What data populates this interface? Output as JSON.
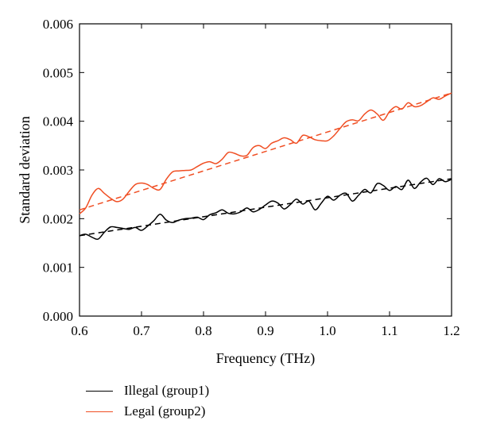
{
  "chart_data": {
    "type": "line",
    "xlabel": "Frequency (THz)",
    "ylabel": "Standard deviation",
    "xlim": [
      0.6,
      1.2
    ],
    "ylim": [
      0.0,
      0.006
    ],
    "xticks": [
      "0.6",
      "0.7",
      "0.8",
      "0.9",
      "1.0",
      "1.1",
      "1.2"
    ],
    "yticks": [
      "0.000",
      "0.001",
      "0.002",
      "0.003",
      "0.004",
      "0.005",
      "0.006"
    ],
    "grid": false,
    "legend_position": "bottom-left",
    "series": [
      {
        "name": "Illegal (group1)",
        "color": "#000000",
        "style": "solid",
        "x": [
          0.6,
          0.61,
          0.62,
          0.63,
          0.64,
          0.65,
          0.66,
          0.67,
          0.68,
          0.69,
          0.7,
          0.71,
          0.72,
          0.73,
          0.74,
          0.75,
          0.76,
          0.77,
          0.78,
          0.79,
          0.8,
          0.81,
          0.82,
          0.83,
          0.84,
          0.85,
          0.86,
          0.87,
          0.88,
          0.89,
          0.9,
          0.91,
          0.92,
          0.93,
          0.94,
          0.95,
          0.96,
          0.97,
          0.98,
          0.99,
          1.0,
          1.01,
          1.02,
          1.03,
          1.04,
          1.05,
          1.06,
          1.07,
          1.08,
          1.09,
          1.1,
          1.11,
          1.12,
          1.13,
          1.14,
          1.15,
          1.16,
          1.17,
          1.18,
          1.19,
          1.2
        ],
        "y": [
          0.00165,
          0.00168,
          0.00162,
          0.00158,
          0.00172,
          0.00183,
          0.00182,
          0.0018,
          0.00178,
          0.00182,
          0.00176,
          0.00185,
          0.00196,
          0.00209,
          0.00197,
          0.00192,
          0.00197,
          0.002,
          0.00201,
          0.00203,
          0.00198,
          0.00208,
          0.00212,
          0.00218,
          0.00211,
          0.0021,
          0.00214,
          0.00222,
          0.00214,
          0.00219,
          0.00228,
          0.00236,
          0.00232,
          0.0022,
          0.00229,
          0.0024,
          0.0023,
          0.00236,
          0.00218,
          0.00232,
          0.00246,
          0.00238,
          0.00248,
          0.00252,
          0.00236,
          0.00248,
          0.0026,
          0.00253,
          0.00272,
          0.00268,
          0.00258,
          0.00266,
          0.0026,
          0.00279,
          0.00262,
          0.00275,
          0.00283,
          0.0027,
          0.00282,
          0.00276,
          0.00281
        ]
      },
      {
        "name": "Legal (group2)",
        "color": "#f04e23",
        "style": "solid",
        "x": [
          0.6,
          0.61,
          0.62,
          0.63,
          0.64,
          0.65,
          0.66,
          0.67,
          0.68,
          0.69,
          0.7,
          0.71,
          0.72,
          0.73,
          0.74,
          0.75,
          0.76,
          0.77,
          0.78,
          0.79,
          0.8,
          0.81,
          0.82,
          0.83,
          0.84,
          0.85,
          0.86,
          0.87,
          0.88,
          0.89,
          0.9,
          0.91,
          0.92,
          0.93,
          0.94,
          0.95,
          0.96,
          0.97,
          0.98,
          0.99,
          1.0,
          1.01,
          1.02,
          1.03,
          1.04,
          1.05,
          1.06,
          1.07,
          1.08,
          1.09,
          1.1,
          1.11,
          1.12,
          1.13,
          1.14,
          1.15,
          1.16,
          1.17,
          1.18,
          1.19,
          1.2
        ],
        "y": [
          0.0021,
          0.00222,
          0.00248,
          0.00262,
          0.00252,
          0.00242,
          0.00235,
          0.0024,
          0.00256,
          0.0027,
          0.00273,
          0.0027,
          0.00262,
          0.0026,
          0.00281,
          0.00296,
          0.00298,
          0.00299,
          0.003,
          0.00307,
          0.00314,
          0.00317,
          0.00313,
          0.00322,
          0.00336,
          0.00334,
          0.00329,
          0.0033,
          0.00346,
          0.0035,
          0.00344,
          0.00355,
          0.0036,
          0.00366,
          0.00362,
          0.00355,
          0.00371,
          0.00368,
          0.00362,
          0.0036,
          0.0036,
          0.0037,
          0.00385,
          0.00399,
          0.00403,
          0.00401,
          0.00415,
          0.00423,
          0.00415,
          0.00402,
          0.0042,
          0.0043,
          0.00425,
          0.00438,
          0.0043,
          0.00432,
          0.0044,
          0.00448,
          0.00445,
          0.00452,
          0.00458
        ]
      },
      {
        "color": "#000000",
        "style": "dashed",
        "x": [
          0.6,
          1.2
        ],
        "y": [
          0.00165,
          0.00282
        ]
      },
      {
        "color": "#f04e23",
        "style": "dashed",
        "x": [
          0.6,
          1.2
        ],
        "y": [
          0.00218,
          0.00458
        ]
      }
    ]
  },
  "legend": {
    "items": [
      {
        "label": "Illegal (group1)",
        "color": "#000000"
      },
      {
        "label": "Legal (group2)",
        "color": "#f04e23"
      }
    ]
  }
}
